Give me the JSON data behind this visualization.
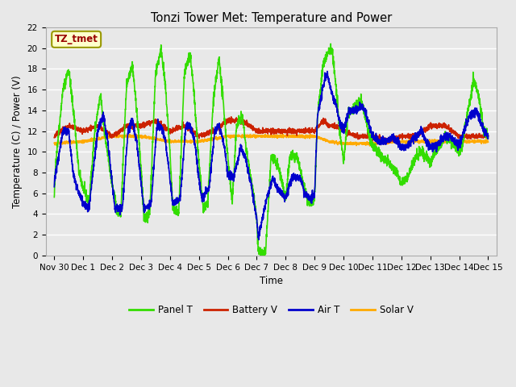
{
  "title": "Tonzi Tower Met: Temperature and Power",
  "xlabel": "Time",
  "ylabel": "Temperature (C) / Power (V)",
  "ylim": [
    0,
    22
  ],
  "yticks": [
    0,
    2,
    4,
    6,
    8,
    10,
    12,
    14,
    16,
    18,
    20,
    22
  ],
  "annotation_text": "TZ_tmet",
  "annotation_color": "#990000",
  "annotation_bg": "#ffffcc",
  "annotation_border": "#999900",
  "colors": {
    "Panel T": "#33dd00",
    "Battery V": "#cc2200",
    "Air T": "#0000cc",
    "Solar V": "#ffaa00"
  },
  "lw": 1.2,
  "bg_color": "#e8e8e8",
  "grid_color": "#ffffff",
  "xtick_labels": [
    "Nov 30",
    "Dec 1",
    "Dec 2",
    "Dec 3",
    "Dec 4",
    "Dec 5",
    "Dec 6",
    "Dec 7",
    "Dec 8",
    "Dec 9",
    "Dec 10",
    "Dec 11",
    "Dec 12",
    "Dec 13",
    "Dec 14",
    "Dec 15"
  ],
  "xtick_positions": [
    0,
    1,
    2,
    3,
    4,
    5,
    6,
    7,
    8,
    9,
    10,
    11,
    12,
    13,
    14,
    15
  ]
}
